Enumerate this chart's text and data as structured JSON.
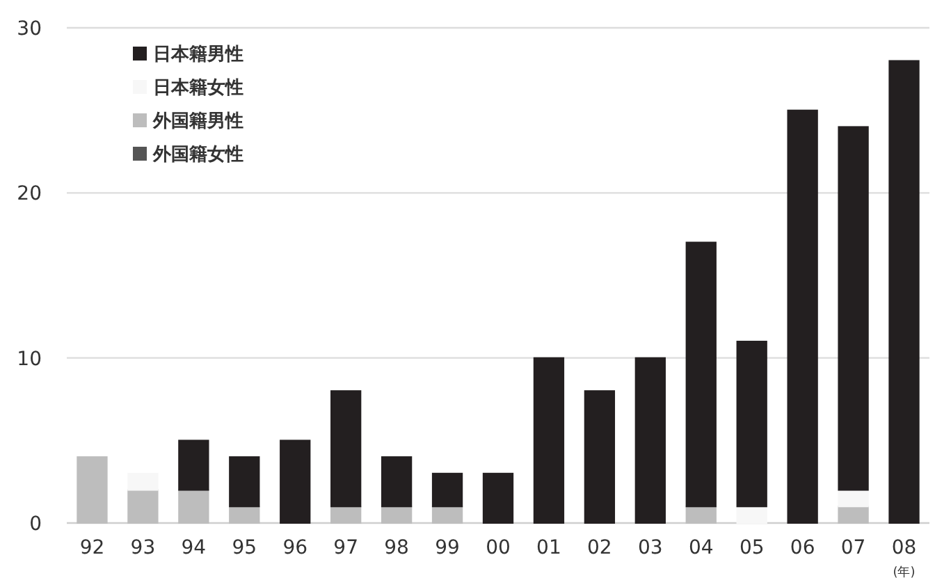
{
  "chart_data": {
    "type": "bar",
    "stacked": true,
    "xlabel": "(年)",
    "categories": [
      "92",
      "93",
      "94",
      "95",
      "96",
      "97",
      "98",
      "99",
      "00",
      "01",
      "02",
      "03",
      "04",
      "05",
      "06",
      "07",
      "08"
    ],
    "series": [
      {
        "name": "外国籍女性",
        "color": "#555555",
        "values": [
          0,
          0,
          0,
          0,
          0,
          0,
          0,
          0,
          0,
          0,
          0,
          0,
          0,
          0,
          0,
          0,
          0
        ]
      },
      {
        "name": "外国籍男性",
        "color": "#bdbdbd",
        "values": [
          4,
          2,
          2,
          1,
          0,
          1,
          1,
          1,
          0,
          0,
          0,
          0,
          1,
          0,
          0,
          1,
          0
        ]
      },
      {
        "name": "日本籍女性",
        "color": "#f7f7f7",
        "values": [
          0,
          1,
          0,
          0,
          0,
          0,
          0,
          0,
          0,
          0,
          0,
          0,
          0,
          1,
          0,
          1,
          0
        ]
      },
      {
        "name": "日本籍男性",
        "color": "#231f20",
        "values": [
          0,
          0,
          3,
          3,
          5,
          7,
          3,
          2,
          3,
          10,
          8,
          10,
          16,
          10,
          25,
          22,
          28
        ]
      }
    ],
    "ylim": [
      0,
      30
    ],
    "yticks": [
      0,
      10,
      20,
      30
    ],
    "grid": "y",
    "legend": "top left"
  }
}
